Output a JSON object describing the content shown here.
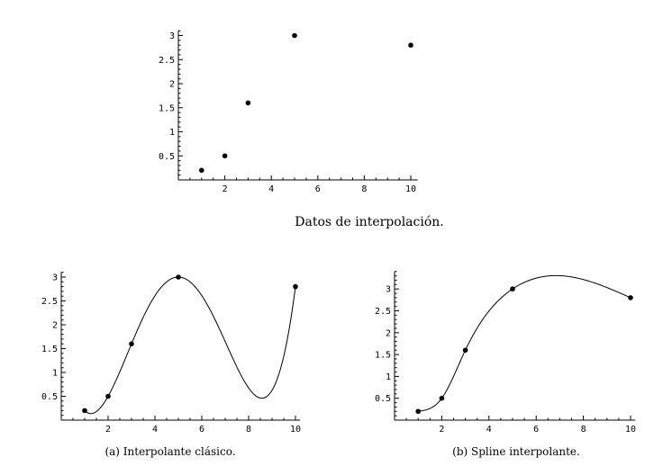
{
  "chart_data": [
    {
      "type": "scatter",
      "caption": "Datos de interpolación.",
      "points": [
        {
          "x": 1,
          "y": 0.2
        },
        {
          "x": 2,
          "y": 0.5
        },
        {
          "x": 3,
          "y": 1.6
        },
        {
          "x": 5,
          "y": 3
        },
        {
          "x": 10,
          "y": 2.8
        }
      ],
      "xticks": [
        2,
        4,
        6,
        8,
        10
      ],
      "yticks": [
        0.5,
        1,
        1.5,
        2,
        2.5,
        3
      ],
      "xlim": [
        0,
        10.3
      ],
      "ylim": [
        0,
        3.1
      ]
    },
    {
      "type": "line",
      "caption": "(a) Interpolante clásico.",
      "points": [
        {
          "x": 1,
          "y": 0.2
        },
        {
          "x": 2,
          "y": 0.5
        },
        {
          "x": 3,
          "y": 1.6
        },
        {
          "x": 5,
          "y": 3
        },
        {
          "x": 10,
          "y": 2.8
        }
      ],
      "curve": "polynomial",
      "xticks": [
        2,
        4,
        6,
        8,
        10
      ],
      "yticks": [
        0.5,
        1,
        1.5,
        2,
        2.5,
        3
      ],
      "xlim": [
        0,
        10.2
      ],
      "ylim": [
        0,
        3.1
      ]
    },
    {
      "type": "line",
      "caption": "(b) Spline interpolante.",
      "points": [
        {
          "x": 1,
          "y": 0.2
        },
        {
          "x": 2,
          "y": 0.5
        },
        {
          "x": 3,
          "y": 1.6
        },
        {
          "x": 5,
          "y": 3
        },
        {
          "x": 10,
          "y": 2.8
        }
      ],
      "curve": "spline",
      "xticks": [
        2,
        4,
        6,
        8,
        10
      ],
      "yticks": [
        0.5,
        1,
        1.5,
        2,
        2.5,
        3
      ],
      "xlim": [
        0,
        10.2
      ],
      "ylim": [
        0,
        3.4
      ]
    }
  ]
}
